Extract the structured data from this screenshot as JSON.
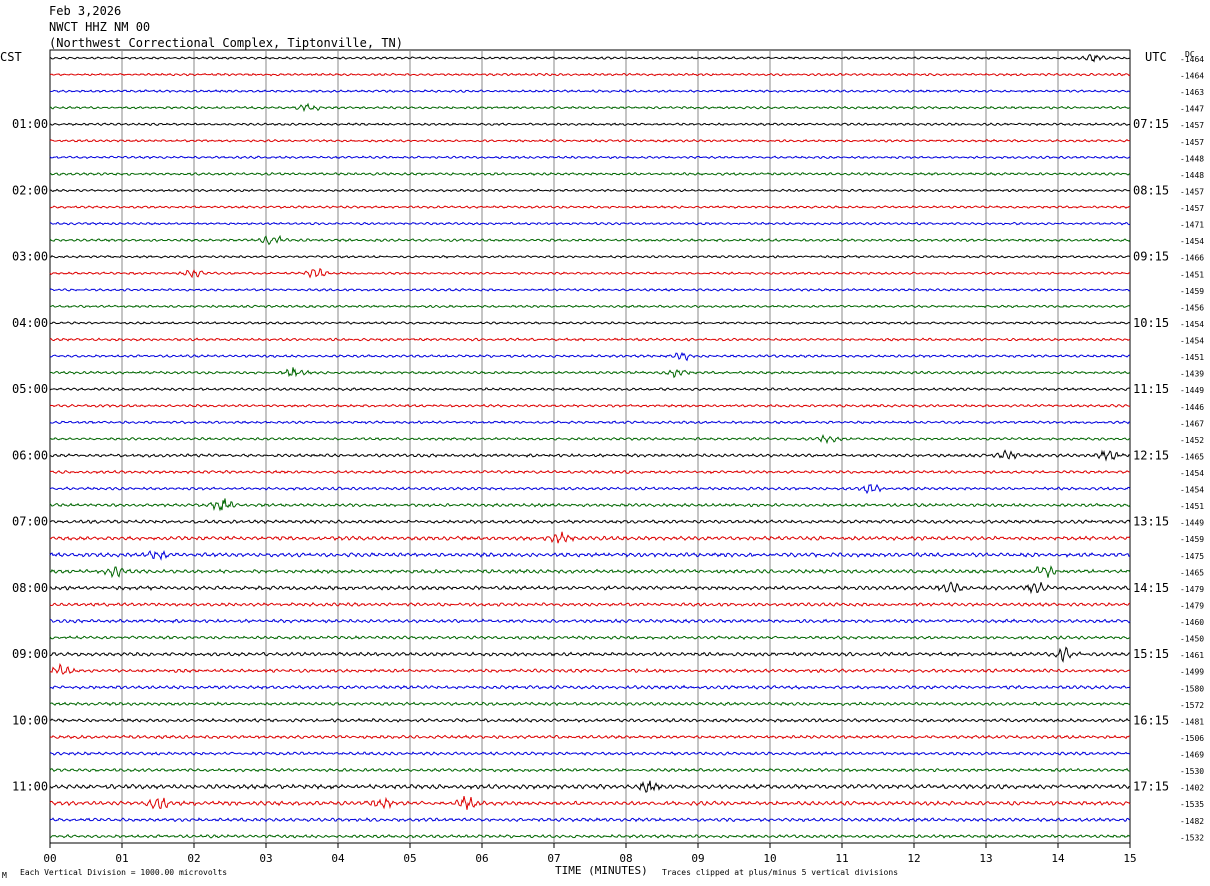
{
  "header": {
    "date": "Feb 3,2026",
    "station": "NWCT HHZ NM 00",
    "location": "(Northwest Correctional Complex, Tiptonville, TN)"
  },
  "footer": {
    "left_note": "Each Vertical Division = 1000.00 microvolts",
    "center_label": "TIME (MINUTES)",
    "right_note": "Traces clipped at plus/minus 5 vertical divisions",
    "corner_mark": "M"
  },
  "chart_data": {
    "type": "line",
    "title": "NWCT HHZ NM 00",
    "xlabel": "TIME (MINUTES)",
    "xlim": [
      0,
      15
    ],
    "x_ticks": [
      "00",
      "01",
      "02",
      "03",
      "04",
      "05",
      "06",
      "07",
      "08",
      "09",
      "10",
      "11",
      "12",
      "13",
      "14",
      "15"
    ],
    "left_axis_title": "CST",
    "right_axis_title": "UTC",
    "dc_title": "DC",
    "left_hour_labels": [
      "01:00",
      "02:00",
      "03:00",
      "04:00",
      "05:00",
      "06:00",
      "07:00",
      "08:00",
      "09:00",
      "10:00",
      "11:00"
    ],
    "right_hour_labels": [
      "07:15",
      "08:15",
      "09:15",
      "10:15",
      "11:15",
      "12:15",
      "13:15",
      "14:15",
      "15:15",
      "16:15",
      "17:15"
    ],
    "hour_label_trace_index": [
      4,
      8,
      12,
      16,
      20,
      24,
      28,
      32,
      36,
      40,
      44
    ],
    "trace_colors": [
      "#000000",
      "#dd0000",
      "#0000dd",
      "#006600"
    ],
    "dc_offsets": [
      "-1464",
      "-1464",
      "-1463",
      "-1447",
      "-1457",
      "-1457",
      "-1448",
      "-1448",
      "-1457",
      "-1457",
      "-1471",
      "-1454",
      "-1466",
      "-1451",
      "-1459",
      "-1456",
      "-1454",
      "-1454",
      "-1451",
      "-1439",
      "-1449",
      "-1446",
      "-1467",
      "-1452",
      "-1465",
      "-1454",
      "-1454",
      "-1451",
      "-1449",
      "-1459",
      "-1475",
      "-1465",
      "-1479",
      "-1479",
      "-1460",
      "-1450",
      "-1461",
      "-1499",
      "-1580",
      "-1572",
      "-1481",
      "-1506",
      "-1469",
      "-1530",
      "-1402",
      "-1535",
      "-1482",
      "-1532"
    ],
    "trace_amplitude_div": [
      0.9,
      0.9,
      0.9,
      0.9,
      0.9,
      0.9,
      0.9,
      1.0,
      0.9,
      0.9,
      0.9,
      1.0,
      0.9,
      0.9,
      0.9,
      0.9,
      0.9,
      1.0,
      1.0,
      1.0,
      1.0,
      1.0,
      1.0,
      1.0,
      1.2,
      1.1,
      1.1,
      1.2,
      1.3,
      1.5,
      1.6,
      1.4,
      1.5,
      1.3,
      1.3,
      1.2,
      1.4,
      1.3,
      1.3,
      1.2,
      1.3,
      1.2,
      1.2,
      1.2,
      1.7,
      1.6,
      1.3,
      1.2
    ],
    "events": [
      {
        "trace": 0,
        "minute": 14.5,
        "amp_div": 2.5
      },
      {
        "trace": 3,
        "minute": 3.6,
        "amp_div": 3.0
      },
      {
        "trace": 11,
        "minute": 3.1,
        "amp_div": 4.0
      },
      {
        "trace": 13,
        "minute": 2.0,
        "amp_div": 3.0
      },
      {
        "trace": 13,
        "minute": 3.7,
        "amp_div": 3.5
      },
      {
        "trace": 18,
        "minute": 8.8,
        "amp_div": 3.0
      },
      {
        "trace": 19,
        "minute": 3.4,
        "amp_div": 4.0
      },
      {
        "trace": 19,
        "minute": 8.7,
        "amp_div": 3.0
      },
      {
        "trace": 23,
        "minute": 10.8,
        "amp_div": 3.0
      },
      {
        "trace": 24,
        "minute": 13.3,
        "amp_div": 3.0
      },
      {
        "trace": 24,
        "minute": 14.7,
        "amp_div": 4.5
      },
      {
        "trace": 26,
        "minute": 11.4,
        "amp_div": 3.0
      },
      {
        "trace": 27,
        "minute": 2.4,
        "amp_div": 5.0
      },
      {
        "trace": 29,
        "minute": 7.1,
        "amp_div": 4.0
      },
      {
        "trace": 30,
        "minute": 1.5,
        "amp_div": 4.5
      },
      {
        "trace": 31,
        "minute": 0.9,
        "amp_div": 4.0
      },
      {
        "trace": 31,
        "minute": 13.8,
        "amp_div": 5.0
      },
      {
        "trace": 32,
        "minute": 12.5,
        "amp_div": 4.0
      },
      {
        "trace": 32,
        "minute": 13.7,
        "amp_div": 4.0
      },
      {
        "trace": 36,
        "minute": 14.1,
        "amp_div": 4.5
      },
      {
        "trace": 37,
        "minute": 0.15,
        "amp_div": 5.0
      },
      {
        "trace": 44,
        "minute": 8.3,
        "amp_div": 4.0
      },
      {
        "trace": 45,
        "minute": 1.5,
        "amp_div": 4.5
      },
      {
        "trace": 45,
        "minute": 4.6,
        "amp_div": 4.0
      },
      {
        "trace": 45,
        "minute": 5.8,
        "amp_div": 5.0
      }
    ]
  }
}
